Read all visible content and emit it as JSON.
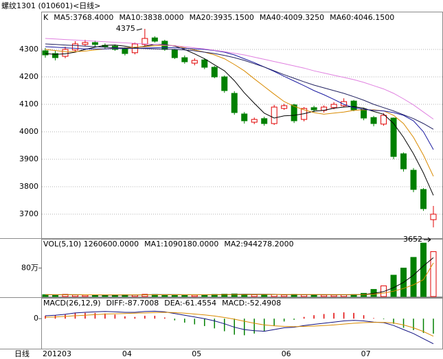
{
  "chart_data": [
    {
      "type": "candlestick",
      "title": "螺纹1301 (010601)<日线>",
      "xlabel": "日线",
      "legend_title": "K",
      "categories": [
        "201203",
        null,
        null,
        null,
        null,
        null,
        null,
        null,
        "04",
        null,
        null,
        null,
        null,
        null,
        null,
        "05",
        null,
        null,
        null,
        null,
        null,
        null,
        null,
        null,
        "06",
        null,
        null,
        null,
        null,
        null,
        null,
        null,
        "07",
        null,
        null,
        null,
        null,
        null,
        null,
        null
      ],
      "open": [
        4295,
        4285,
        4275,
        4298,
        4318,
        4325,
        4315,
        4312,
        4302,
        4288,
        4318,
        4342,
        4330,
        4298,
        4270,
        4250,
        4262,
        4235,
        4200,
        4140,
        4065,
        4035,
        4048,
        4030,
        4085,
        4098,
        4045,
        4088,
        4078,
        4088,
        4095,
        4112,
        4082,
        4052,
        4028,
        4050,
        3920,
        3860,
        3790,
        3680
      ],
      "high": [
        4305,
        4295,
        4310,
        4330,
        4335,
        4332,
        4322,
        4318,
        4308,
        4325,
        4375,
        4348,
        4335,
        4302,
        4278,
        4268,
        4268,
        4240,
        4205,
        4148,
        4072,
        4052,
        4055,
        4098,
        4102,
        4102,
        4090,
        4095,
        4096,
        4108,
        4122,
        4116,
        4088,
        4058,
        4068,
        4052,
        3925,
        3868,
        3795,
        3730
      ],
      "low": [
        4270,
        4260,
        4268,
        4292,
        4312,
        4310,
        4302,
        4295,
        4278,
        4282,
        4312,
        4325,
        4295,
        4265,
        4248,
        4242,
        4228,
        4195,
        4142,
        4062,
        4030,
        4028,
        4022,
        4025,
        4080,
        4032,
        4038,
        4072,
        4070,
        4082,
        4090,
        4075,
        4042,
        4020,
        4022,
        3900,
        3855,
        3780,
        3712,
        3652
      ],
      "close": [
        4280,
        4270,
        4300,
        4320,
        4325,
        4318,
        4310,
        4300,
        4285,
        4320,
        4340,
        4330,
        4300,
        4270,
        4255,
        4260,
        4235,
        4200,
        4150,
        4070,
        4040,
        4045,
        4030,
        4090,
        4095,
        4040,
        4085,
        4080,
        4090,
        4100,
        4110,
        4080,
        4050,
        4030,
        4060,
        3910,
        3865,
        3790,
        3720,
        3700
      ],
      "up_color": "#e00000",
      "down_color": "#008000",
      "series": [
        {
          "label": "MA5:3768.4000",
          "color": "#000000",
          "values": [
            4285,
            4282,
            4284,
            4290,
            4300,
            4308,
            4315,
            4316,
            4312,
            4306,
            4312,
            4318,
            4318,
            4312,
            4300,
            4284,
            4266,
            4244,
            4222,
            4186,
            4142,
            4104,
            4068,
            4050,
            4058,
            4060,
            4066,
            4075,
            4078,
            4086,
            4090,
            4092,
            4086,
            4074,
            4064,
            4030,
            3980,
            3920,
            3850,
            3768.4
          ]
        },
        {
          "label": "MA10:3838.0000",
          "color": "#d98a00",
          "values": [
            4300,
            4296,
            4292,
            4292,
            4294,
            4298,
            4302,
            4305,
            4306,
            4308,
            4310,
            4313,
            4315,
            4314,
            4306,
            4298,
            4290,
            4280,
            4266,
            4245,
            4222,
            4193,
            4165,
            4137,
            4110,
            4093,
            4080,
            4070,
            4064,
            4068,
            4072,
            4078,
            4080,
            4080,
            4076,
            4060,
            4030,
            3980,
            3915,
            3838
          ]
        },
        {
          "label": "MA20:3935.1500",
          "color": "#1a1aa0",
          "values": [
            4310,
            4308,
            4306,
            4304,
            4302,
            4302,
            4302,
            4303,
            4303,
            4304,
            4305,
            4306,
            4307,
            4306,
            4304,
            4302,
            4300,
            4296,
            4290,
            4280,
            4266,
            4252,
            4236,
            4220,
            4202,
            4185,
            4168,
            4150,
            4135,
            4118,
            4100,
            4088,
            4082,
            4078,
            4076,
            4070,
            4060,
            4040,
            4000,
            3935.15
          ]
        },
        {
          "label": "MA40:4009.3250",
          "color": "#202060",
          "values": [
            4320,
            4318,
            4316,
            4314,
            4312,
            4310,
            4308,
            4306,
            4305,
            4304,
            4303,
            4302,
            4301,
            4300,
            4298,
            4295,
            4290,
            4285,
            4278,
            4270,
            4260,
            4248,
            4236,
            4222,
            4208,
            4195,
            4182,
            4170,
            4160,
            4150,
            4140,
            4128,
            4115,
            4100,
            4088,
            4076,
            4062,
            4048,
            4030,
            4009.325
          ]
        },
        {
          "label": "MA60:4046.1500",
          "color": "#e080e0",
          "values": [
            4340,
            4338,
            4336,
            4334,
            4332,
            4330,
            4328,
            4326,
            4324,
            4322,
            4320,
            4318,
            4316,
            4313,
            4310,
            4306,
            4302,
            4297,
            4292,
            4286,
            4280,
            4272,
            4264,
            4256,
            4248,
            4240,
            4232,
            4222,
            4214,
            4206,
            4198,
            4190,
            4180,
            4168,
            4156,
            4140,
            4120,
            4098,
            4072,
            4046.15
          ]
        }
      ],
      "annotations": [
        {
          "value": 4375
        },
        {
          "value": 3652
        }
      ],
      "ylim": [
        3612.5,
        4435
      ],
      "yticks": [
        3700,
        3800,
        3900,
        4000,
        4100,
        4200,
        4300
      ],
      "grid": true
    },
    {
      "type": "volume",
      "title": "VOL(5,10) 1260600.0000",
      "values": [
        52000,
        48000,
        60000,
        45000,
        40000,
        42000,
        38000,
        44000,
        50000,
        47000,
        62000,
        55000,
        48000,
        46000,
        43000,
        41000,
        50000,
        58000,
        66000,
        72000,
        60000,
        52000,
        54000,
        58000,
        46000,
        60000,
        52000,
        48000,
        45000,
        44000,
        50000,
        56000,
        90000,
        200000,
        300000,
        600000,
        800000,
        1100000,
        1500000,
        1260600
      ],
      "series": [
        {
          "label": "MA1:1090180.0000",
          "color": "#000000",
          "values": [
            50000,
            50000,
            51000,
            51000,
            49000,
            47000,
            45000,
            42000,
            44000,
            44000,
            48000,
            52000,
            52000,
            52000,
            51000,
            50000,
            49000,
            50000,
            53000,
            57000,
            61000,
            61000,
            61000,
            59000,
            54000,
            54000,
            54000,
            53000,
            52000,
            50000,
            48000,
            51000,
            58000,
            88000,
            139000,
            249000,
            400000,
            600000,
            860000,
            1090180
          ]
        },
        {
          "label": "MA2:944278.2000",
          "color": "#d98a00",
          "values": [
            52000,
            51000,
            51000,
            50000,
            49000,
            48000,
            47000,
            46000,
            46000,
            46000,
            47000,
            48000,
            49000,
            49000,
            49000,
            49000,
            50000,
            51000,
            52000,
            53000,
            54000,
            55000,
            56000,
            56000,
            55000,
            55000,
            55000,
            55000,
            54000,
            53000,
            52000,
            52000,
            54000,
            68000,
            96000,
            151000,
            227000,
            329000,
            473000,
            944278.2
          ]
        }
      ],
      "ylim": [
        0,
        1600000
      ],
      "yticks": [
        {
          "value": 800000,
          "label": "80万"
        }
      ]
    },
    {
      "type": "macd",
      "title": "MACD(26,12,9)",
      "series": [
        {
          "label": "DIFF:-87.7008",
          "color": "#101080",
          "values": [
            10,
            12,
            15,
            20,
            22,
            24,
            25,
            24,
            22,
            22,
            25,
            26,
            24,
            18,
            12,
            6,
            0,
            -8,
            -18,
            -30,
            -38,
            -42,
            -44,
            -38,
            -32,
            -30,
            -24,
            -20,
            -16,
            -12,
            -8,
            -6,
            -8,
            -12,
            -14,
            -24,
            -38,
            -52,
            -70,
            -87.7008
          ]
        },
        {
          "label": "DEA:-61.4554",
          "color": "#d98a00",
          "values": [
            5,
            6,
            8,
            10,
            12,
            14,
            16,
            17,
            18,
            19,
            20,
            21,
            22,
            21,
            19,
            16,
            13,
            9,
            4,
            -2,
            -9,
            -16,
            -22,
            -25,
            -27,
            -28,
            -27,
            -26,
            -24,
            -22,
            -19,
            -16,
            -14,
            -13,
            -13,
            -15,
            -22,
            -32,
            -45,
            -61.4554
          ]
        }
      ],
      "bars": {
        "label": "MACD:-52.4908",
        "values": [
          10,
          12,
          14,
          20,
          20,
          20,
          18,
          14,
          8,
          6,
          10,
          10,
          4,
          -6,
          -14,
          -20,
          -26,
          -34,
          -44,
          -56,
          -58,
          -52,
          -44,
          -26,
          -10,
          -4,
          6,
          12,
          16,
          20,
          22,
          20,
          12,
          2,
          -2,
          -18,
          -32,
          -40,
          -50,
          -52.4908
        ]
      },
      "ylim": [
        -105,
        70
      ],
      "yticks": [
        0
      ]
    }
  ]
}
